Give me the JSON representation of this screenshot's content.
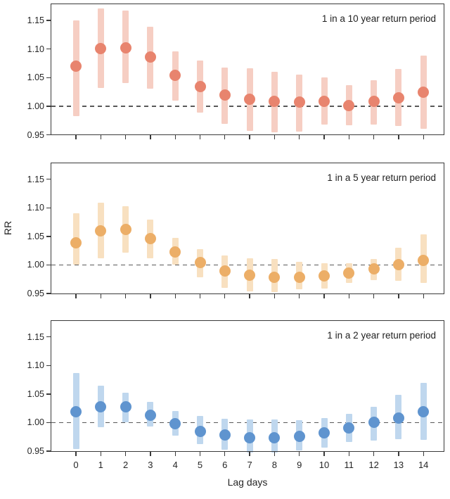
{
  "figure": {
    "ylabel": "RR",
    "xlabel": "Lag days",
    "background_color": "#ffffff",
    "axis_color": "#3a3a3a",
    "text_color": "#262626",
    "refline_color": "#595959"
  },
  "chart_data": [
    {
      "type": "scatter",
      "title": "1 in a 10 year return period",
      "x": [
        0,
        1,
        2,
        3,
        4,
        5,
        6,
        7,
        8,
        9,
        10,
        11,
        12,
        13,
        14
      ],
      "series": [
        {
          "name": "RR point estimate",
          "values": [
            1.07,
            1.101,
            1.102,
            1.086,
            1.054,
            1.034,
            1.02,
            1.012,
            1.008,
            1.007,
            1.009,
            1.001,
            1.008,
            1.015,
            1.024
          ]
        }
      ],
      "ci_low": [
        0.983,
        1.032,
        1.04,
        1.031,
        1.01,
        0.989,
        0.969,
        0.957,
        0.954,
        0.956,
        0.968,
        0.967,
        0.968,
        0.966,
        0.96
      ],
      "ci_high": [
        1.15,
        1.171,
        1.167,
        1.139,
        1.096,
        1.08,
        1.068,
        1.066,
        1.06,
        1.055,
        1.051,
        1.037,
        1.046,
        1.065,
        1.088
      ],
      "point_color": "#e8846e",
      "bar_color": "#f6cec3",
      "ylim": [
        0.9494,
        1.1797
      ],
      "yticks": [
        0.95,
        1.0,
        1.05,
        1.1,
        1.15
      ],
      "refline": 1.0,
      "grid": false,
      "legend": false
    },
    {
      "type": "scatter",
      "title": "1 in a 5 year return period",
      "x": [
        0,
        1,
        2,
        3,
        4,
        5,
        6,
        7,
        8,
        9,
        10,
        11,
        12,
        13,
        14
      ],
      "series": [
        {
          "name": "RR point estimate",
          "values": [
            1.039,
            1.06,
            1.062,
            1.046,
            1.023,
            1.004,
            0.99,
            0.982,
            0.978,
            0.978,
            0.981,
            0.986,
            0.993,
            1.001,
            1.008
          ]
        }
      ],
      "ci_low": [
        1.0,
        1.011,
        1.021,
        1.011,
        1.001,
        0.978,
        0.96,
        0.954,
        0.953,
        0.957,
        0.959,
        0.968,
        0.974,
        0.972,
        0.968
      ],
      "ci_high": [
        1.09,
        1.109,
        1.103,
        1.079,
        1.047,
        1.028,
        1.016,
        1.012,
        1.01,
        1.006,
        1.003,
        1.003,
        1.01,
        1.03,
        1.053
      ],
      "point_color": "#ecae67",
      "bar_color": "#f8e0c0",
      "ylim": [
        0.9494,
        1.1797
      ],
      "yticks": [
        0.95,
        1.0,
        1.05,
        1.1,
        1.15
      ],
      "refline": 1.0,
      "grid": false,
      "legend": false
    },
    {
      "type": "scatter",
      "title": "1 in a 2 year return period",
      "x": [
        0,
        1,
        2,
        3,
        4,
        5,
        6,
        7,
        8,
        9,
        10,
        11,
        12,
        13,
        14
      ],
      "series": [
        {
          "name": "RR point estimate",
          "values": [
            1.019,
            1.028,
            1.027,
            1.013,
            0.998,
            0.985,
            0.978,
            0.974,
            0.974,
            0.976,
            0.982,
            0.991,
            1.0,
            1.008,
            1.019
          ]
        }
      ],
      "ci_low": [
        0.954,
        0.992,
        1.0,
        0.993,
        0.977,
        0.962,
        0.952,
        0.947,
        0.948,
        0.951,
        0.956,
        0.966,
        0.969,
        0.971,
        0.97
      ],
      "ci_high": [
        1.087,
        1.065,
        1.052,
        1.036,
        1.02,
        1.012,
        1.007,
        1.005,
        1.005,
        1.004,
        1.008,
        1.015,
        1.028,
        1.048,
        1.069
      ],
      "point_color": "#5f94cf",
      "bar_color": "#bfd7ee",
      "ylim": [
        0.9494,
        1.1797
      ],
      "yticks": [
        0.95,
        1.0,
        1.05,
        1.1,
        1.15
      ],
      "refline": 1.0,
      "grid": false,
      "legend": false
    }
  ]
}
